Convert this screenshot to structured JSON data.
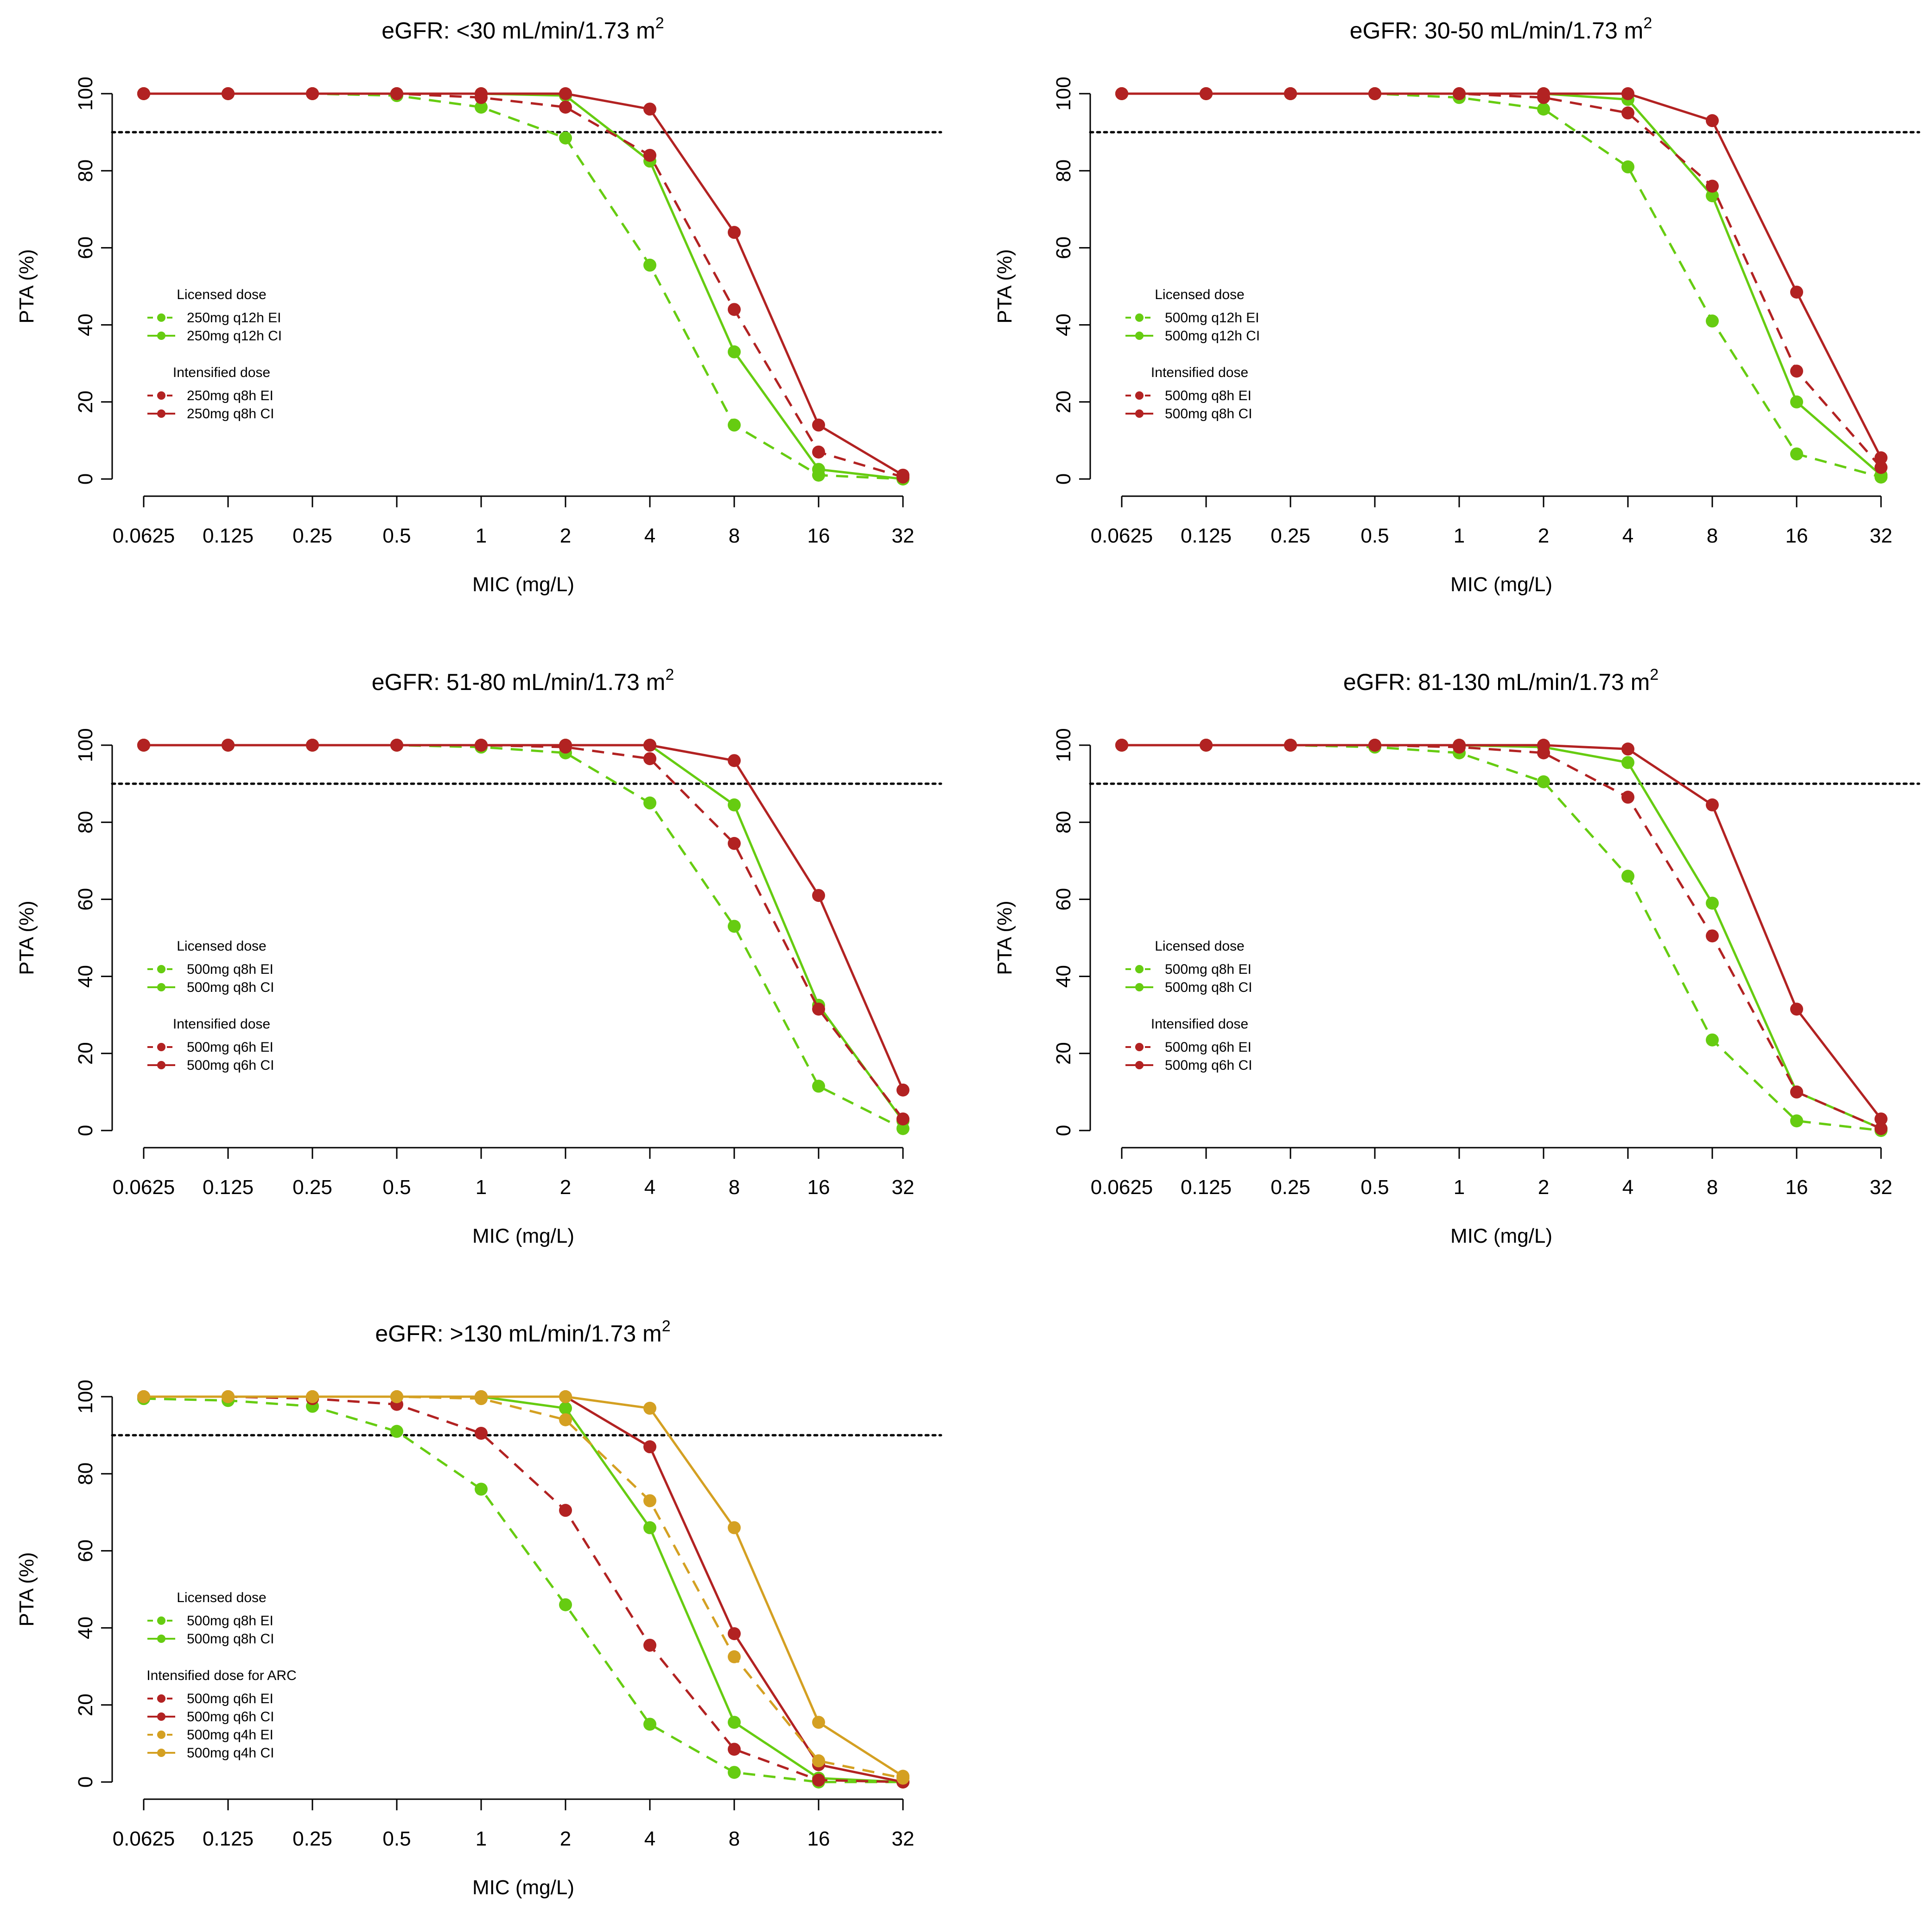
{
  "colors": {
    "green": "#66CC11",
    "red": "#B22222",
    "gold": "#D4A022",
    "reference": "#000000"
  },
  "chart_data": [
    {
      "type": "line",
      "title": "eGFR: <30 mL/min/1.73 m",
      "title_superscript": "2",
      "xlabel": "MIC (mg/L)",
      "ylabel": "PTA (%)",
      "categories": [
        "0.0625",
        "0.125",
        "0.25",
        "0.5",
        "1",
        "2",
        "4",
        "8",
        "16",
        "32"
      ],
      "y_ticks": [
        "0",
        "20",
        "40",
        "60",
        "80",
        "100"
      ],
      "ylim": [
        0,
        100
      ],
      "reference_line": 90,
      "legend_groups": [
        {
          "header": "Licensed dose",
          "series": [
            0,
            1
          ]
        },
        {
          "header": "Intensified dose",
          "series": [
            2,
            3
          ]
        }
      ],
      "series": [
        {
          "name": "250mg q12h EI",
          "color": "green",
          "dashed": true,
          "values": [
            100,
            100,
            100,
            99.5,
            96.5,
            88.5,
            55.5,
            14,
            1,
            0
          ]
        },
        {
          "name": "250mg q12h CI",
          "color": "green",
          "dashed": false,
          "values": [
            100,
            100,
            100,
            100,
            100,
            99.5,
            82.5,
            33,
            2.5,
            0
          ]
        },
        {
          "name": "250mg q8h EI",
          "color": "red",
          "dashed": true,
          "values": [
            100,
            100,
            100,
            100,
            99,
            96.5,
            84,
            44,
            7,
            0.5
          ]
        },
        {
          "name": "250mg q8h CI",
          "color": "red",
          "dashed": false,
          "values": [
            100,
            100,
            100,
            100,
            100,
            100,
            96,
            64,
            14,
            1
          ]
        }
      ]
    },
    {
      "type": "line",
      "title": "eGFR: 30-50 mL/min/1.73 m",
      "title_superscript": "2",
      "xlabel": "MIC (mg/L)",
      "ylabel": "PTA (%)",
      "categories": [
        "0.0625",
        "0.125",
        "0.25",
        "0.5",
        "1",
        "2",
        "4",
        "8",
        "16",
        "32"
      ],
      "y_ticks": [
        "0",
        "20",
        "40",
        "60",
        "80",
        "100"
      ],
      "ylim": [
        0,
        100
      ],
      "reference_line": 90,
      "legend_groups": [
        {
          "header": "Licensed dose",
          "series": [
            0,
            1
          ]
        },
        {
          "header": "Intensified dose",
          "series": [
            2,
            3
          ]
        }
      ],
      "series": [
        {
          "name": "500mg q12h EI",
          "color": "green",
          "dashed": true,
          "values": [
            100,
            100,
            100,
            100,
            99,
            96,
            81,
            41,
            6.5,
            0.5
          ]
        },
        {
          "name": "500mg q12h CI",
          "color": "green",
          "dashed": false,
          "values": [
            100,
            100,
            100,
            100,
            100,
            100,
            98.5,
            73.5,
            20,
            1
          ]
        },
        {
          "name": "500mg q8h EI",
          "color": "red",
          "dashed": true,
          "values": [
            100,
            100,
            100,
            100,
            100,
            99,
            95,
            76,
            28,
            3
          ]
        },
        {
          "name": "500mg q8h CI",
          "color": "red",
          "dashed": false,
          "values": [
            100,
            100,
            100,
            100,
            100,
            100,
            100,
            93,
            48.5,
            5.5
          ]
        }
      ]
    },
    {
      "type": "line",
      "title": "eGFR: 51-80 mL/min/1.73 m",
      "title_superscript": "2",
      "xlabel": "MIC (mg/L)",
      "ylabel": "PTA (%)",
      "categories": [
        "0.0625",
        "0.125",
        "0.25",
        "0.5",
        "1",
        "2",
        "4",
        "8",
        "16",
        "32"
      ],
      "y_ticks": [
        "0",
        "20",
        "40",
        "60",
        "80",
        "100"
      ],
      "ylim": [
        0,
        100
      ],
      "reference_line": 90,
      "legend_groups": [
        {
          "header": "Licensed dose",
          "series": [
            0,
            1
          ]
        },
        {
          "header": "Intensified dose",
          "series": [
            2,
            3
          ]
        }
      ],
      "series": [
        {
          "name": "500mg q8h EI",
          "color": "green",
          "dashed": true,
          "values": [
            100,
            100,
            100,
            100,
            99.5,
            98,
            85,
            53,
            11.5,
            0.5
          ]
        },
        {
          "name": "500mg q8h CI",
          "color": "green",
          "dashed": false,
          "values": [
            100,
            100,
            100,
            100,
            100,
            100,
            100,
            84.5,
            32.5,
            2.5
          ]
        },
        {
          "name": "500mg q6h EI",
          "color": "red",
          "dashed": true,
          "values": [
            100,
            100,
            100,
            100,
            100,
            99.5,
            96.5,
            74.5,
            31.5,
            3
          ]
        },
        {
          "name": "500mg q6h CI",
          "color": "red",
          "dashed": false,
          "values": [
            100,
            100,
            100,
            100,
            100,
            100,
            100,
            96,
            61,
            10.5
          ]
        }
      ]
    },
    {
      "type": "line",
      "title": "eGFR: 81-130 mL/min/1.73 m",
      "title_superscript": "2",
      "xlabel": "MIC (mg/L)",
      "ylabel": "PTA (%)",
      "categories": [
        "0.0625",
        "0.125",
        "0.25",
        "0.5",
        "1",
        "2",
        "4",
        "8",
        "16",
        "32"
      ],
      "y_ticks": [
        "0",
        "20",
        "40",
        "60",
        "80",
        "100"
      ],
      "ylim": [
        0,
        100
      ],
      "reference_line": 90,
      "legend_groups": [
        {
          "header": "Licensed dose",
          "series": [
            0,
            1
          ]
        },
        {
          "header": "Intensified dose",
          "series": [
            2,
            3
          ]
        }
      ],
      "series": [
        {
          "name": "500mg q8h EI",
          "color": "green",
          "dashed": true,
          "values": [
            100,
            100,
            100,
            99.5,
            98,
            90.5,
            66,
            23.5,
            2.5,
            0
          ]
        },
        {
          "name": "500mg q8h CI",
          "color": "green",
          "dashed": false,
          "values": [
            100,
            100,
            100,
            100,
            100,
            99.5,
            95.5,
            59,
            10,
            0.5
          ]
        },
        {
          "name": "500mg q6h EI",
          "color": "red",
          "dashed": true,
          "values": [
            100,
            100,
            100,
            100,
            99.5,
            98,
            86.5,
            50.5,
            10,
            0.5
          ]
        },
        {
          "name": "500mg q6h CI",
          "color": "red",
          "dashed": false,
          "values": [
            100,
            100,
            100,
            100,
            100,
            100,
            99,
            84.5,
            31.5,
            3
          ]
        }
      ]
    },
    {
      "type": "line",
      "title": "eGFR: >130 mL/min/1.73 m",
      "title_superscript": "2",
      "xlabel": "MIC (mg/L)",
      "ylabel": "PTA (%)",
      "categories": [
        "0.0625",
        "0.125",
        "0.25",
        "0.5",
        "1",
        "2",
        "4",
        "8",
        "16",
        "32"
      ],
      "y_ticks": [
        "0",
        "20",
        "40",
        "60",
        "80",
        "100"
      ],
      "ylim": [
        0,
        100
      ],
      "reference_line": 90,
      "legend_groups": [
        {
          "header": "Licensed dose",
          "series": [
            0,
            1
          ]
        },
        {
          "header": "Intensified dose for ARC",
          "series": [
            2,
            3,
            4,
            5
          ]
        }
      ],
      "series": [
        {
          "name": "500mg q8h EI",
          "color": "green",
          "dashed": true,
          "values": [
            99.5,
            99,
            97.5,
            91,
            76,
            46,
            15,
            2.5,
            0,
            0
          ]
        },
        {
          "name": "500mg q8h CI",
          "color": "green",
          "dashed": false,
          "values": [
            100,
            100,
            100,
            100,
            100,
            97,
            66,
            15.5,
            1,
            0
          ]
        },
        {
          "name": "500mg q6h EI",
          "color": "red",
          "dashed": true,
          "values": [
            100,
            100,
            99.5,
            98,
            90.5,
            70.5,
            35.5,
            8.5,
            0.5,
            0
          ]
        },
        {
          "name": "500mg q6h CI",
          "color": "red",
          "dashed": false,
          "values": [
            100,
            100,
            100,
            100,
            100,
            100,
            87,
            38.5,
            4.5,
            0
          ]
        },
        {
          "name": "500mg q4h EI",
          "color": "gold",
          "dashed": true,
          "values": [
            100,
            100,
            100,
            100,
            99.5,
            94,
            73,
            32.5,
            5.5,
            1
          ]
        },
        {
          "name": "500mg q4h CI",
          "color": "gold",
          "dashed": false,
          "values": [
            100,
            100,
            100,
            100,
            100,
            100,
            97,
            66,
            15.5,
            1.5
          ]
        }
      ]
    }
  ]
}
